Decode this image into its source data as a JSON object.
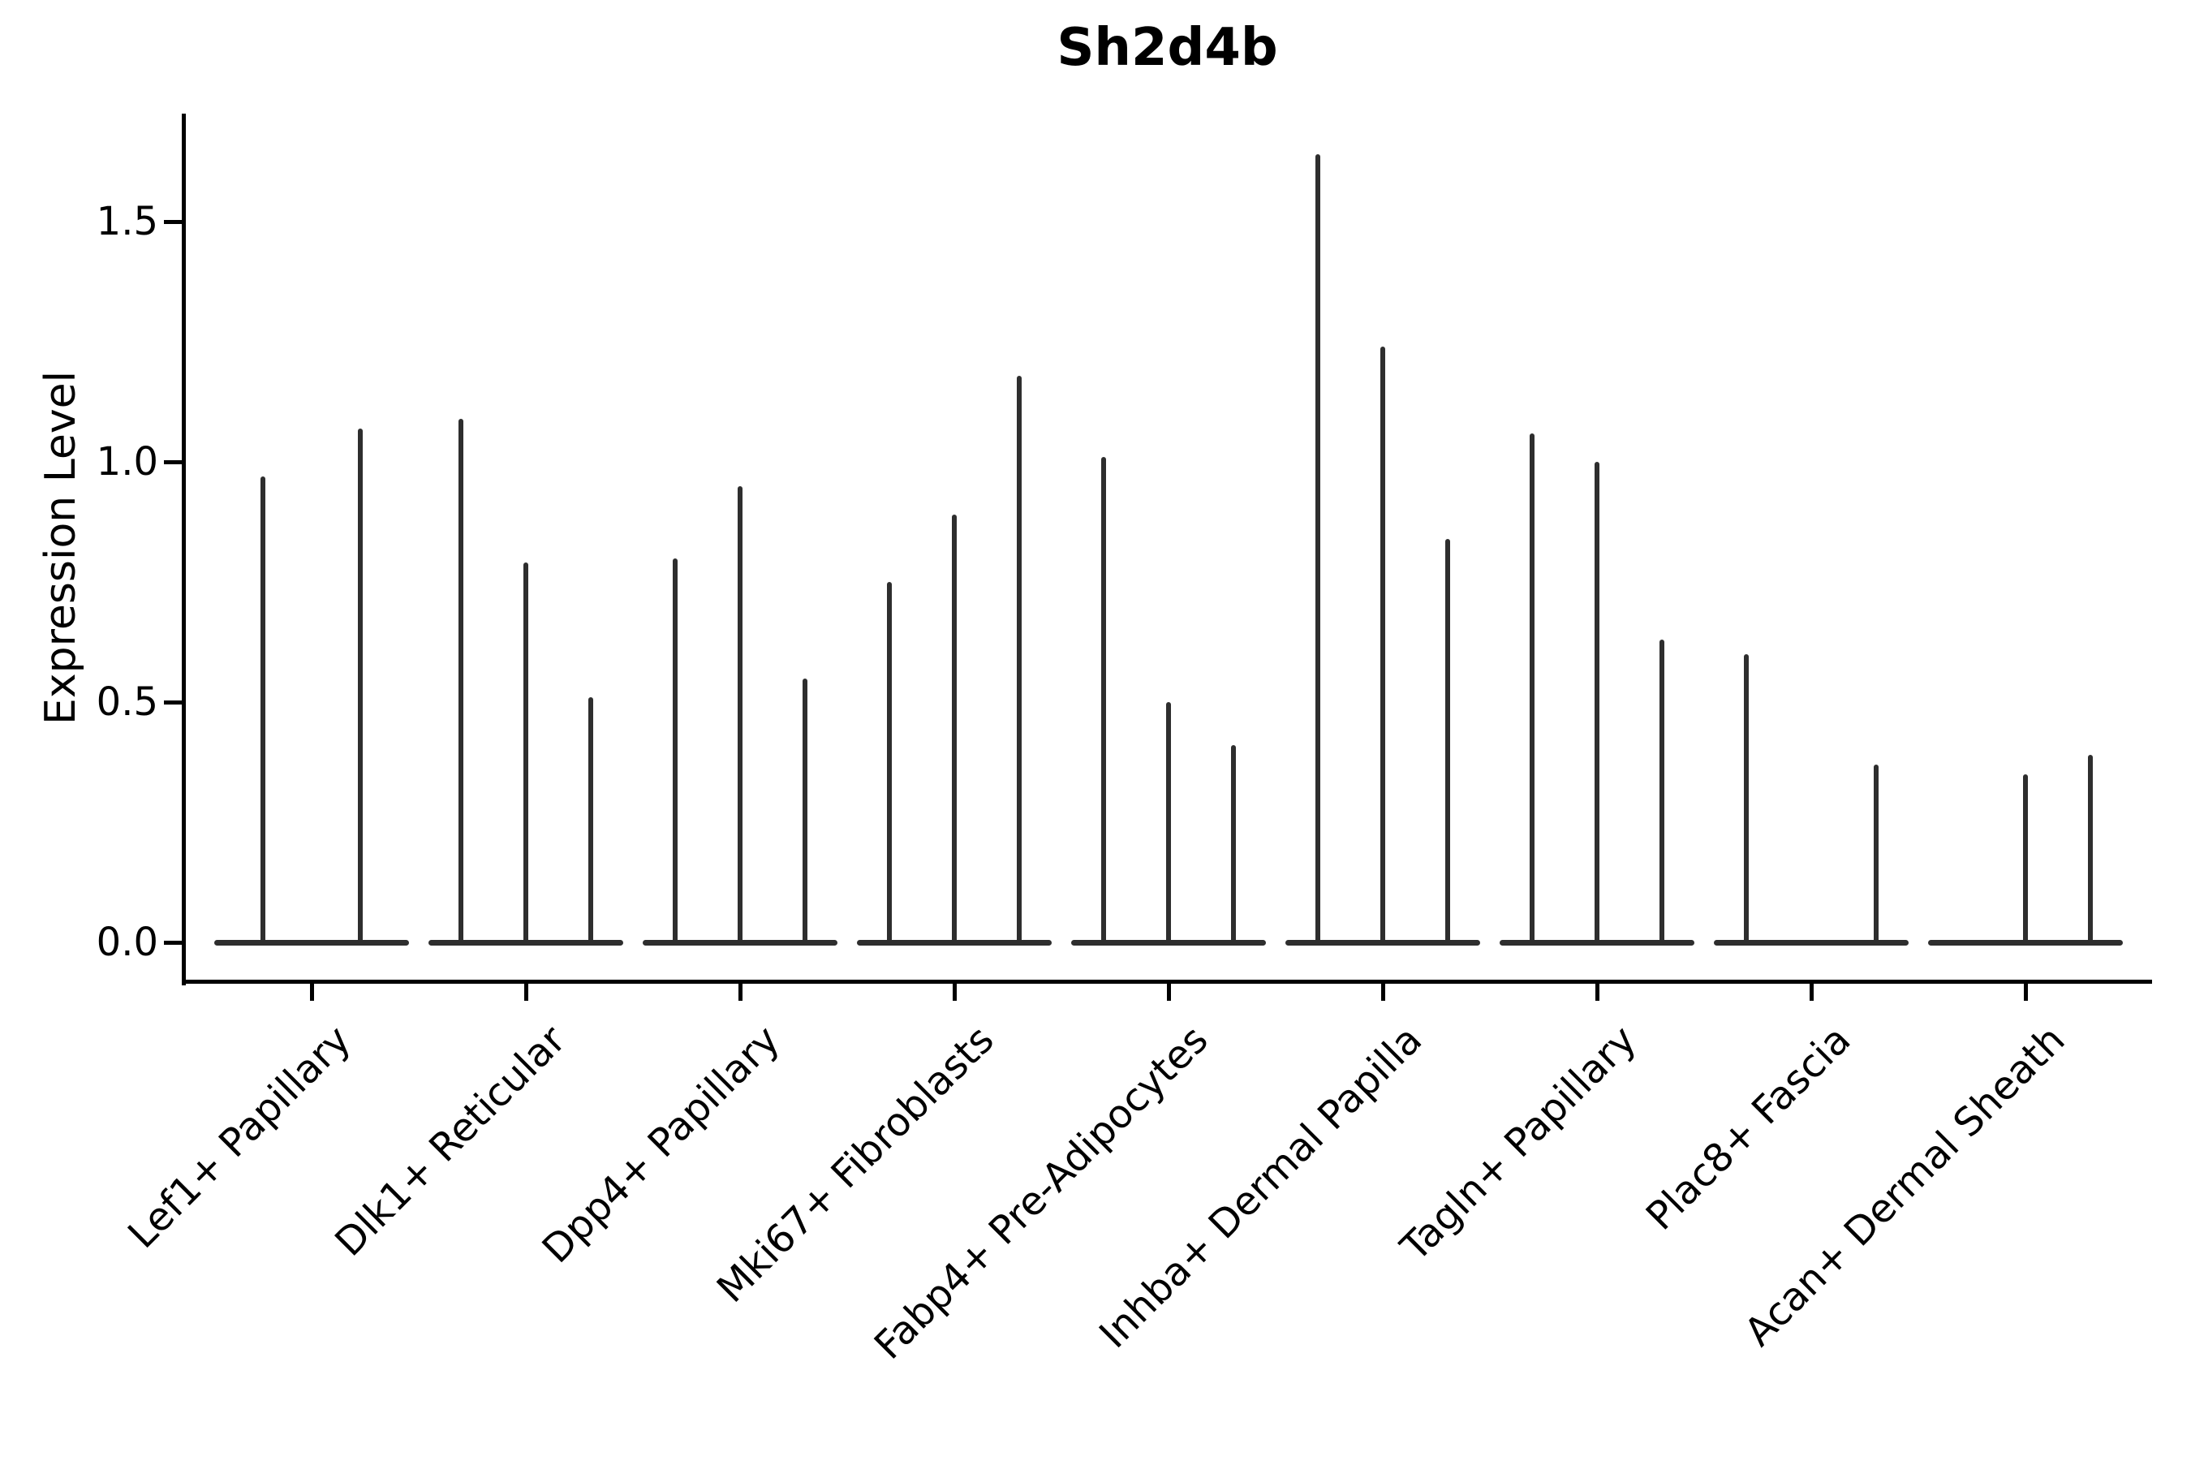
{
  "title": "Sh2d4b",
  "ylabel": "Expression Level",
  "chart_data": {
    "type": "violin",
    "title": "Sh2d4b",
    "xlabel": "",
    "ylabel": "Expression Level",
    "ylim": [
      -0.081,
      1.725
    ],
    "yticks": [
      0,
      0.5,
      1.0,
      1.5
    ],
    "ytick_labels": [
      "0.0",
      "0.5",
      "1.0",
      "1.5"
    ],
    "grid": false,
    "legend_position": "none",
    "violin_style": "thin spikes: density concentrated at 0 with narrow vertical spike up to max expression; flat base at 0 spans each category group",
    "categories": [
      "Lef1+ Papillary",
      "Dlk1+ Reticular",
      "Dpp4+ Papillary",
      "Mki67+ Fibroblasts",
      "Fabp4+ Pre-Adipocytes",
      "Inhba+ Dermal Papilla",
      "Tagln+ Papillary",
      "Plac8+ Fascia",
      "Acan+ Dermal Sheath"
    ],
    "groups": [
      {
        "category": "Lef1+ Papillary",
        "spike_max_values": [
          0.97,
          1.07
        ]
      },
      {
        "category": "Dlk1+ Reticular",
        "spike_max_values": [
          1.09,
          0.79,
          0.51
        ]
      },
      {
        "category": "Dpp4+ Papillary",
        "spike_max_values": [
          0.8,
          0.95,
          0.55
        ]
      },
      {
        "category": "Mki67+ Fibroblasts",
        "spike_max_values": [
          0.75,
          0.89,
          1.18
        ]
      },
      {
        "category": "Fabp4+ Pre-Adipocytes",
        "spike_max_values": [
          1.01,
          0.5,
          0.41
        ]
      },
      {
        "category": "Inhba+ Dermal Papilla",
        "spike_max_values": [
          1.64,
          1.24,
          0.84
        ]
      },
      {
        "category": "Tagln+ Papillary",
        "spike_max_values": [
          1.06,
          1.0,
          0.63
        ]
      },
      {
        "category": "Plac8+ Fascia",
        "spike_max_values": [
          0.6,
          0,
          0.37
        ]
      },
      {
        "category": "Acan+ Dermal Sheath",
        "spike_max_values": [
          0,
          0.35,
          0.39
        ]
      }
    ]
  },
  "colors": {
    "background": "#ffffff",
    "axis": "#000000",
    "text": "#000000",
    "violin": "#2e2e2e"
  }
}
